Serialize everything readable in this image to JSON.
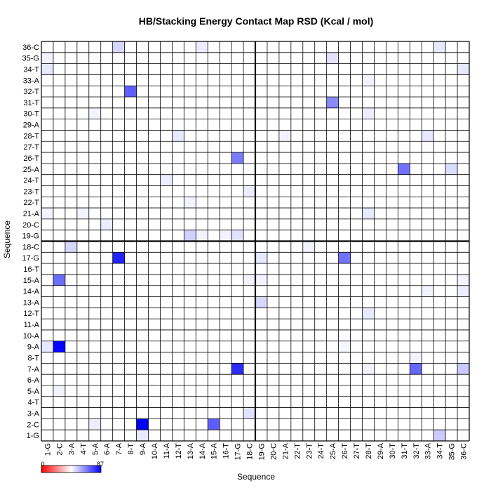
{
  "chart_data": {
    "type": "heatmap",
    "title": "HB/Stacking Energy Contact Map RSD (Kcal / mol)",
    "xlabel": "Sequence",
    "ylabel": "Sequence",
    "labels": [
      "1-G",
      "2-C",
      "3-A",
      "4-T",
      "5-A",
      "6-A",
      "7-A",
      "8-T",
      "9-A",
      "10-A",
      "11-A",
      "12-T",
      "13-A",
      "14-A",
      "15-A",
      "16-T",
      "17-G",
      "18-C",
      "19-G",
      "20-C",
      "21-A",
      "22-T",
      "23-T",
      "24-T",
      "25-A",
      "26-T",
      "27-T",
      "28-T",
      "29-A",
      "30-T",
      "31-T",
      "32-T",
      "33-A",
      "34-T",
      "35-G",
      "36-C"
    ],
    "x_tick_labels": [
      "1-G",
      "2-C",
      "3-A",
      "4-T",
      "5-A",
      "6-A",
      "7-A",
      "8-T",
      "9-A",
      "10-A",
      "11-A",
      "12-T",
      "13-A",
      "14-A",
      "15-A",
      "16-T",
      "17-G",
      "18-C",
      "19-G",
      "20-C",
      "21-A",
      "22-T",
      "23-T",
      "24-T",
      "25-A",
      "26-T",
      "27-T",
      "28-T",
      "29-A",
      "30-T",
      "31-T",
      "32-T",
      "33-A",
      "34-T",
      "35-G",
      "36-C"
    ],
    "divider_after_index": 18,
    "colorbar": {
      "min_label": "0",
      "max_label": "87",
      "min": 0,
      "max": 87
    },
    "colors": {
      "low": "#ff0000",
      "mid": "#ffffff",
      "high": "#0000ff",
      "grid": "#000000"
    },
    "cells": [
      [
        1,
        34,
        18
      ],
      [
        1,
        9,
        8
      ],
      [
        2,
        9,
        87
      ],
      [
        2,
        15,
        55
      ],
      [
        2,
        5,
        6
      ],
      [
        3,
        18,
        10
      ],
      [
        5,
        2,
        4
      ],
      [
        7,
        17,
        72
      ],
      [
        7,
        32,
        52
      ],
      [
        7,
        36,
        18
      ],
      [
        7,
        28,
        4
      ],
      [
        8,
        32,
        4
      ],
      [
        9,
        2,
        85
      ],
      [
        9,
        1,
        8
      ],
      [
        9,
        26,
        3
      ],
      [
        12,
        28,
        8
      ],
      [
        13,
        19,
        14
      ],
      [
        14,
        36,
        6
      ],
      [
        14,
        33,
        4
      ],
      [
        15,
        2,
        50
      ],
      [
        15,
        36,
        4
      ],
      [
        15,
        19,
        4
      ],
      [
        15,
        18,
        4
      ],
      [
        17,
        7,
        75
      ],
      [
        17,
        26,
        48
      ],
      [
        17,
        19,
        8
      ],
      [
        18,
        3,
        14
      ],
      [
        18,
        23,
        4
      ],
      [
        19,
        13,
        16
      ],
      [
        19,
        17,
        10
      ],
      [
        19,
        16,
        4
      ],
      [
        19,
        14,
        4
      ],
      [
        20,
        6,
        6
      ],
      [
        21,
        28,
        8
      ],
      [
        21,
        1,
        4
      ],
      [
        21,
        4,
        4
      ],
      [
        22,
        13,
        4
      ],
      [
        23,
        18,
        6
      ],
      [
        24,
        11,
        6
      ],
      [
        25,
        31,
        48
      ],
      [
        25,
        35,
        12
      ],
      [
        26,
        17,
        45
      ],
      [
        28,
        12,
        8
      ],
      [
        28,
        33,
        8
      ],
      [
        28,
        21,
        4
      ],
      [
        30,
        28,
        6
      ],
      [
        30,
        5,
        4
      ],
      [
        31,
        25,
        40
      ],
      [
        32,
        8,
        55
      ],
      [
        33,
        28,
        4
      ],
      [
        34,
        1,
        8
      ],
      [
        34,
        36,
        8
      ],
      [
        35,
        25,
        10
      ],
      [
        35,
        1,
        4
      ],
      [
        36,
        7,
        14
      ],
      [
        36,
        34,
        8
      ],
      [
        36,
        14,
        6
      ]
    ]
  }
}
